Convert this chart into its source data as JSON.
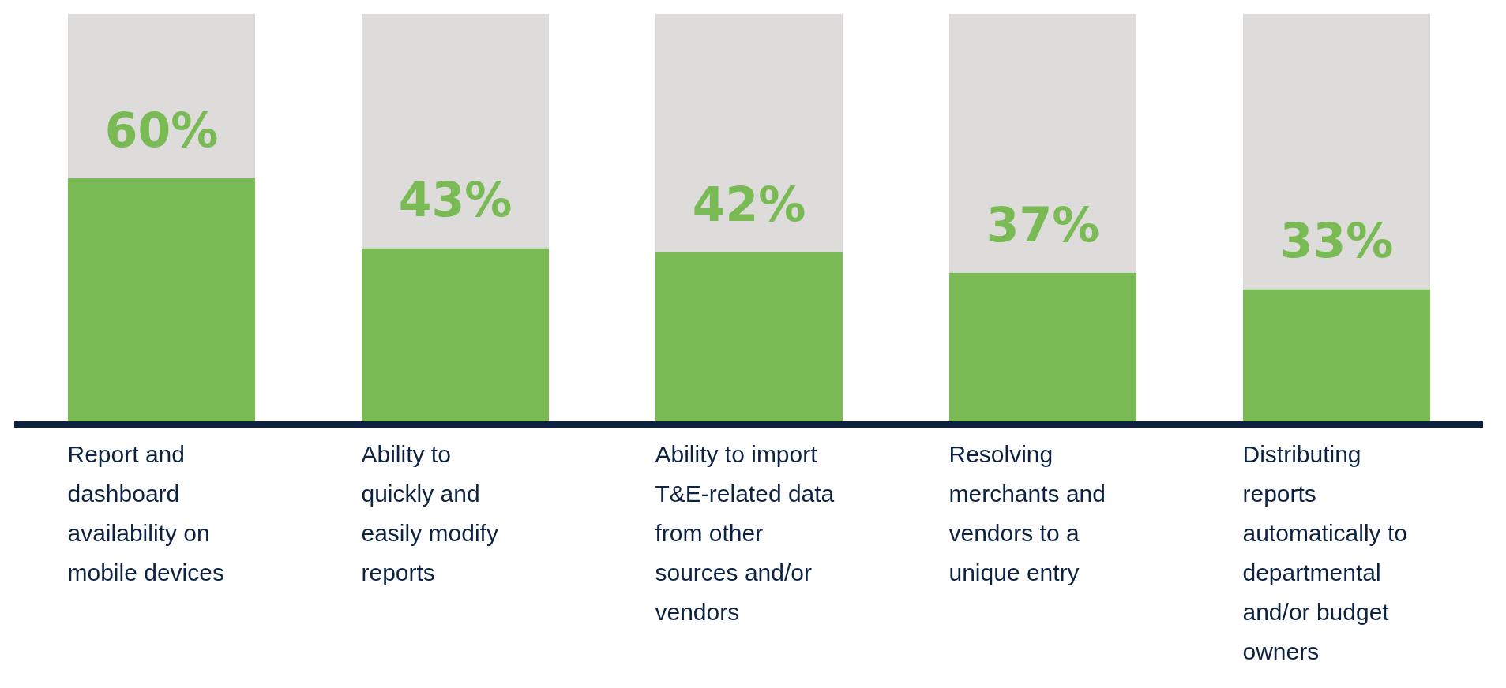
{
  "chart_data": {
    "type": "bar",
    "stacked": true,
    "categories": [
      "Report and dashboard availability on mobile devices",
      "Ability to quickly and easily modify reports",
      "Ability to import T&E-related data from other sources and/or vendors",
      "Resolving merchants and vendors to a unique entry",
      "Distributing reports automatically to departmental and/or budget owners"
    ],
    "series": [
      {
        "color": "#7aba55",
        "values": [
          60,
          43,
          42,
          37,
          33
        ],
        "value_labels": [
          "60%",
          "43%",
          "42%",
          "37%",
          "33%"
        ]
      },
      {
        "color": "#dedcdb",
        "values": [
          40,
          57,
          58,
          63,
          67
        ]
      }
    ],
    "ylim": [
      0,
      100
    ],
    "tick_labels": "x"
  }
}
